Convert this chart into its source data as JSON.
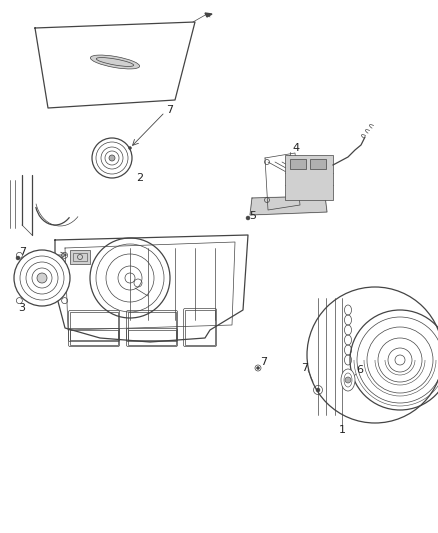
{
  "bg_color": "#ffffff",
  "line_color": "#444444",
  "label_color": "#222222",
  "gray_light": "#d0d0d0",
  "gray_mid": "#b0b0b0",
  "figsize": [
    4.38,
    5.33
  ],
  "dpi": 100
}
